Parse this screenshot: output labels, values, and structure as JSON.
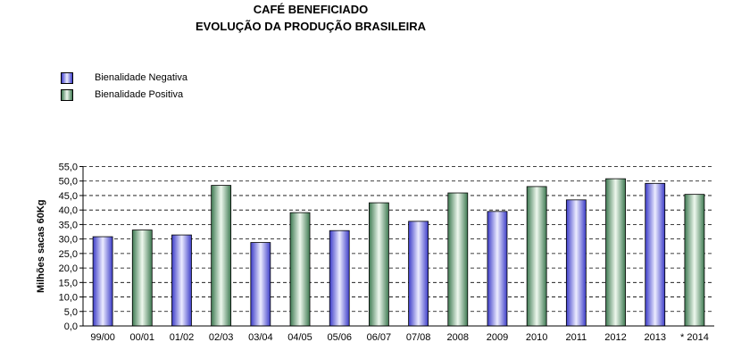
{
  "chart_data": {
    "type": "bar",
    "title": "CAFÉ BENEFICIADO",
    "subtitle": "EVOLUÇÃO DA PRODUÇÃO BRASILEIRA",
    "ylabel": "Milhões sacas 60Kg",
    "xlabel": "",
    "ylim": [
      0,
      55
    ],
    "ytick_step": 5,
    "ytick_labels": [
      "0,0",
      "5,0",
      "10,0",
      "15,0",
      "20,0",
      "25,0",
      "30,0",
      "35,0",
      "40,0",
      "45,0",
      "50,0",
      "55,0"
    ],
    "grid": true,
    "legend_position": "top-left",
    "categories": [
      "99/00",
      "00/01",
      "01/02",
      "02/03",
      "03/04",
      "04/05",
      "05/06",
      "06/07",
      "07/08",
      "2008",
      "2009",
      "2010",
      "2011",
      "2012",
      "2013",
      "* 2014"
    ],
    "values": [
      30.8,
      33.1,
      31.4,
      48.5,
      28.8,
      39.1,
      32.9,
      42.5,
      36.1,
      45.9,
      39.5,
      48.1,
      43.5,
      50.8,
      49.2,
      45.4
    ],
    "groups": [
      "neg",
      "pos",
      "neg",
      "pos",
      "neg",
      "pos",
      "neg",
      "pos",
      "neg",
      "pos",
      "neg",
      "pos",
      "neg",
      "pos",
      "neg",
      "pos"
    ],
    "series": [
      {
        "name": "Bienalidade Negativa",
        "key": "neg",
        "color": "#7070e0"
      },
      {
        "name": "Bienalidade Positiva",
        "key": "pos",
        "color": "#80b890"
      }
    ]
  }
}
